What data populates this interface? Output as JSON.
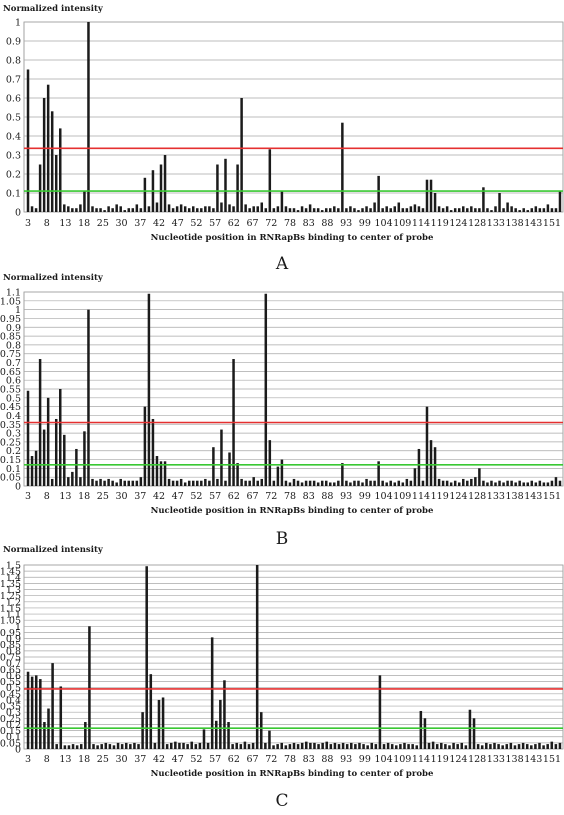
{
  "chart_data": [
    {
      "type": "bar",
      "panel_label": "A",
      "ylabel": "Normalized intensity",
      "xlabel": "Nucleotide position in RNRapBs binding to center of probe",
      "ylim": [
        0,
        1
      ],
      "yticks": [
        0,
        0.1,
        0.2,
        0.3,
        0.4,
        0.5,
        0.6,
        0.7,
        0.8,
        0.9,
        1
      ],
      "ytick_labels": [
        "0",
        "0.1",
        "0.2",
        "0.3",
        "0.4",
        "0.5",
        "0.6",
        "0.7",
        "0.8",
        "0.9",
        "1"
      ],
      "x_start": 3,
      "x_end": 153,
      "xtick_labels": [
        "3",
        "8",
        "13",
        "18",
        "25",
        "30",
        "37",
        "42",
        "47",
        "52",
        "57",
        "62",
        "67",
        "72",
        "78",
        "83",
        "88",
        "93",
        "99",
        "104",
        "109",
        "114",
        "119",
        "124",
        "128",
        "133",
        "138",
        "143",
        "151"
      ],
      "reference_lines": [
        {
          "value": 0.335,
          "color": "#e53030"
        },
        {
          "value": 0.11,
          "color": "#39c832"
        }
      ],
      "grid": true,
      "values": [
        0.75,
        0.03,
        0.02,
        0.25,
        0.6,
        0.67,
        0.53,
        0.3,
        0.44,
        0.04,
        0.03,
        0.02,
        0.02,
        0.04,
        0.11,
        1.0,
        0.03,
        0.02,
        0.02,
        0.01,
        0.03,
        0.02,
        0.04,
        0.03,
        0.01,
        0.02,
        0.02,
        0.04,
        0.02,
        0.18,
        0.03,
        0.22,
        0.05,
        0.25,
        0.3,
        0.04,
        0.02,
        0.03,
        0.04,
        0.03,
        0.02,
        0.03,
        0.02,
        0.02,
        0.03,
        0.03,
        0.02,
        0.25,
        0.05,
        0.28,
        0.04,
        0.03,
        0.25,
        0.6,
        0.04,
        0.02,
        0.03,
        0.03,
        0.05,
        0.02,
        0.33,
        0.02,
        0.03,
        0.11,
        0.03,
        0.02,
        0.02,
        0.01,
        0.03,
        0.02,
        0.04,
        0.02,
        0.02,
        0.01,
        0.02,
        0.02,
        0.03,
        0.02,
        0.47,
        0.02,
        0.03,
        0.02,
        0.01,
        0.02,
        0.03,
        0.02,
        0.05,
        0.19,
        0.02,
        0.03,
        0.02,
        0.03,
        0.05,
        0.02,
        0.02,
        0.03,
        0.04,
        0.03,
        0.02,
        0.17,
        0.17,
        0.1,
        0.03,
        0.02,
        0.03,
        0.01,
        0.02,
        0.02,
        0.03,
        0.02,
        0.03,
        0.02,
        0.02,
        0.13,
        0.02,
        0.01,
        0.03,
        0.1,
        0.02,
        0.05,
        0.03,
        0.02,
        0.01,
        0.02,
        0.01,
        0.02,
        0.03,
        0.02,
        0.02,
        0.04,
        0.02,
        0.02,
        0.11
      ]
    },
    {
      "type": "bar",
      "panel_label": "B",
      "ylabel": "Normalized intensity",
      "xlabel": "Nucleotide position in RNRapBs binding to center of probe",
      "ylim": [
        0,
        1.1
      ],
      "yticks": [
        0,
        0.05,
        0.1,
        0.15,
        0.2,
        0.25,
        0.3,
        0.35,
        0.4,
        0.45,
        0.5,
        0.55,
        0.6,
        0.65,
        0.7,
        0.75,
        0.8,
        0.85,
        0.9,
        0.95,
        1,
        1.05,
        1.1
      ],
      "ytick_labels": [
        "0",
        "0.05",
        "0.1",
        "0.15",
        "0.2",
        "0.25",
        "0.3",
        "0.35",
        "0.4",
        "0.45",
        "0.5",
        "0.55",
        "0.6",
        "0.65",
        "0.7",
        "0.75",
        "0.8",
        "0.85",
        "0.9",
        "0.95",
        "1",
        "1.05",
        "1.1"
      ],
      "x_start": 3,
      "x_end": 153,
      "xtick_labels": [
        "3",
        "8",
        "13",
        "18",
        "25",
        "30",
        "37",
        "42",
        "47",
        "52",
        "57",
        "62",
        "67",
        "72",
        "78",
        "83",
        "88",
        "93",
        "99",
        "104",
        "109",
        "114",
        "119",
        "124",
        "128",
        "133",
        "138",
        "143",
        "151"
      ],
      "reference_lines": [
        {
          "value": 0.36,
          "color": "#e53030"
        },
        {
          "value": 0.12,
          "color": "#39c832"
        }
      ],
      "grid": true,
      "values": [
        0.54,
        0.17,
        0.2,
        0.72,
        0.32,
        0.5,
        0.04,
        0.38,
        0.55,
        0.29,
        0.05,
        0.08,
        0.21,
        0.05,
        0.31,
        1.0,
        0.04,
        0.03,
        0.04,
        0.03,
        0.04,
        0.03,
        0.02,
        0.04,
        0.03,
        0.03,
        0.03,
        0.03,
        0.05,
        0.45,
        1.09,
        0.38,
        0.17,
        0.14,
        0.14,
        0.04,
        0.03,
        0.03,
        0.04,
        0.02,
        0.03,
        0.03,
        0.03,
        0.03,
        0.04,
        0.03,
        0.22,
        0.04,
        0.32,
        0.03,
        0.19,
        0.72,
        0.13,
        0.04,
        0.03,
        0.03,
        0.05,
        0.03,
        0.04,
        1.09,
        0.26,
        0.03,
        0.11,
        0.15,
        0.03,
        0.02,
        0.04,
        0.03,
        0.02,
        0.03,
        0.03,
        0.03,
        0.02,
        0.03,
        0.03,
        0.02,
        0.02,
        0.03,
        0.13,
        0.03,
        0.02,
        0.03,
        0.03,
        0.02,
        0.04,
        0.03,
        0.03,
        0.14,
        0.03,
        0.02,
        0.03,
        0.02,
        0.03,
        0.02,
        0.04,
        0.03,
        0.1,
        0.21,
        0.03,
        0.45,
        0.26,
        0.22,
        0.04,
        0.03,
        0.03,
        0.02,
        0.03,
        0.02,
        0.04,
        0.03,
        0.04,
        0.05,
        0.1,
        0.03,
        0.02,
        0.03,
        0.02,
        0.03,
        0.02,
        0.03,
        0.03,
        0.02,
        0.03,
        0.02,
        0.02,
        0.03,
        0.02,
        0.03,
        0.02,
        0.02,
        0.03,
        0.05,
        0.03
      ]
    },
    {
      "type": "bar",
      "panel_label": "C",
      "ylabel": "Normalized intensity",
      "xlabel": "Nucleotide position in RNRapBs binding to center of probe",
      "ylim": [
        0,
        1.5
      ],
      "yticks": [
        0,
        0.05,
        0.1,
        0.15,
        0.2,
        0.25,
        0.3,
        0.35,
        0.4,
        0.45,
        0.5,
        0.55,
        0.6,
        0.65,
        0.7,
        0.75,
        0.8,
        0.85,
        0.9,
        0.95,
        1,
        1.05,
        1.1,
        1.15,
        1.2,
        1.25,
        1.3,
        1.35,
        1.4,
        1.45,
        1.5
      ],
      "ytick_labels": [
        "0",
        "0.05",
        "0.1",
        "0.15",
        "0.2",
        "0.25",
        "0.3",
        "0.35",
        "0.4",
        "0.45",
        "0.5",
        "0.55",
        "0.6",
        "0.65",
        "0.7",
        "0.75",
        "0.8",
        "0.85",
        "0.9",
        "0.95",
        "1",
        "1.05",
        "1.1",
        "1.15",
        "1.2",
        "1.25",
        "1.3",
        "1.35",
        "1.4",
        "1.45",
        "1.5"
      ],
      "x_start": 3,
      "x_end": 153,
      "xtick_labels": [
        "3",
        "8",
        "13",
        "18",
        "25",
        "30",
        "37",
        "42",
        "47",
        "52",
        "57",
        "62",
        "67",
        "72",
        "78",
        "83",
        "88",
        "93",
        "99",
        "104",
        "109",
        "114",
        "119",
        "124",
        "128",
        "133",
        "138",
        "143",
        "151"
      ],
      "reference_lines": [
        {
          "value": 0.49,
          "color": "#e53030"
        },
        {
          "value": 0.17,
          "color": "#39c832"
        }
      ],
      "grid": true,
      "values": [
        0.63,
        0.59,
        0.6,
        0.57,
        0.22,
        0.33,
        0.7,
        0.04,
        0.51,
        0.03,
        0.03,
        0.04,
        0.03,
        0.04,
        0.22,
        1.0,
        0.04,
        0.03,
        0.04,
        0.05,
        0.04,
        0.03,
        0.05,
        0.04,
        0.05,
        0.04,
        0.05,
        0.04,
        0.3,
        1.49,
        0.61,
        0.05,
        0.4,
        0.42,
        0.04,
        0.05,
        0.06,
        0.05,
        0.05,
        0.04,
        0.06,
        0.04,
        0.05,
        0.16,
        0.05,
        0.91,
        0.23,
        0.4,
        0.56,
        0.22,
        0.04,
        0.05,
        0.04,
        0.06,
        0.04,
        0.05,
        1.5,
        0.3,
        0.05,
        0.15,
        0.03,
        0.04,
        0.05,
        0.03,
        0.04,
        0.05,
        0.04,
        0.05,
        0.06,
        0.05,
        0.05,
        0.04,
        0.05,
        0.06,
        0.04,
        0.05,
        0.04,
        0.05,
        0.04,
        0.05,
        0.04,
        0.05,
        0.04,
        0.03,
        0.05,
        0.04,
        0.6,
        0.04,
        0.05,
        0.04,
        0.03,
        0.04,
        0.05,
        0.04,
        0.04,
        0.03,
        0.31,
        0.25,
        0.05,
        0.06,
        0.04,
        0.05,
        0.04,
        0.03,
        0.05,
        0.04,
        0.05,
        0.03,
        0.32,
        0.25,
        0.04,
        0.03,
        0.05,
        0.04,
        0.05,
        0.04,
        0.03,
        0.04,
        0.05,
        0.03,
        0.04,
        0.05,
        0.04,
        0.03,
        0.04,
        0.05,
        0.03,
        0.04,
        0.06,
        0.04,
        0.05
      ]
    }
  ]
}
